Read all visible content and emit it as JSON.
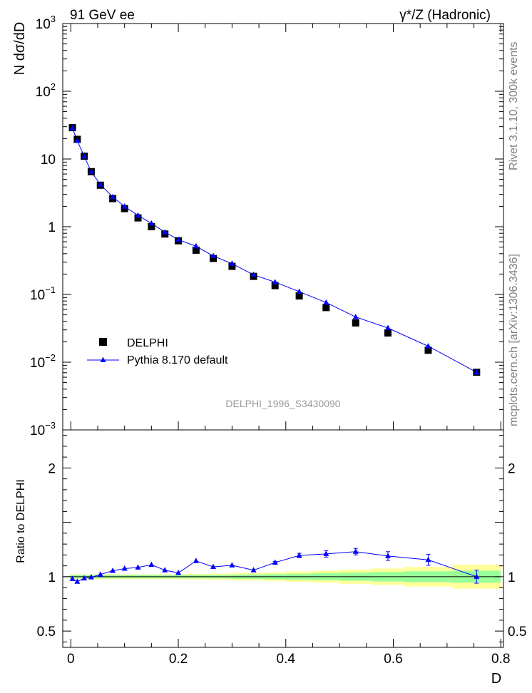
{
  "header": {
    "left": "91 GeV ee",
    "right": "γ*/Z (Hadronic)"
  },
  "side": {
    "rivet": "Rivet 3.1.10,  300k events",
    "mcplots": "mcplots.cern.ch [arXiv:1306.3436]"
  },
  "watermark": "DELPHI_1996_S3430090",
  "chart_data": [
    {
      "type": "scatter",
      "ylabel": "N dσ/dD",
      "yscale": "log",
      "ylim": [
        0.001,
        1000
      ],
      "xlim": [
        -0.015,
        0.805
      ],
      "yticks": [
        {
          "value": 1000,
          "base": "10",
          "exp": "3"
        },
        {
          "value": 100,
          "base": "10",
          "exp": "2"
        },
        {
          "value": 10,
          "base": "10",
          "exp": ""
        },
        {
          "value": 1,
          "base": "1",
          "exp": ""
        },
        {
          "value": 0.1,
          "base": "10",
          "exp": "−1"
        },
        {
          "value": 0.01,
          "base": "10",
          "exp": "−2"
        },
        {
          "value": 0.001,
          "base": "10",
          "exp": "−3"
        }
      ],
      "legend": {
        "position": "bottom-left",
        "entries": [
          "DELPHI",
          "Pythia 8.170 default"
        ]
      },
      "series": [
        {
          "name": "DELPHI",
          "x": [
            0.003,
            0.012,
            0.025,
            0.038,
            0.055,
            0.078,
            0.1,
            0.125,
            0.15,
            0.175,
            0.2,
            0.233,
            0.265,
            0.3,
            0.34,
            0.38,
            0.425,
            0.475,
            0.53,
            0.59,
            0.665,
            0.755
          ],
          "y": [
            29,
            19.5,
            11,
            6.5,
            4.1,
            2.6,
            1.85,
            1.35,
            1.0,
            0.78,
            0.62,
            0.45,
            0.34,
            0.26,
            0.185,
            0.135,
            0.095,
            0.064,
            0.038,
            0.027,
            0.015,
            0.0071
          ]
        },
        {
          "name": "Pythia 8.170 default",
          "x": [
            0.003,
            0.012,
            0.025,
            0.038,
            0.055,
            0.078,
            0.1,
            0.125,
            0.15,
            0.175,
            0.2,
            0.233,
            0.265,
            0.3,
            0.34,
            0.38,
            0.425,
            0.475,
            0.53,
            0.59,
            0.665,
            0.755
          ],
          "y": [
            28.5,
            18.6,
            10.9,
            6.5,
            4.2,
            2.75,
            1.99,
            1.47,
            1.12,
            0.83,
            0.645,
            0.515,
            0.37,
            0.285,
            0.195,
            0.152,
            0.11,
            0.076,
            0.0465,
            0.032,
            0.0172,
            0.0071
          ]
        }
      ]
    },
    {
      "type": "line",
      "ylabel": "Ratio to DELPHI",
      "xlabel": "D",
      "ylim": [
        0.35,
        2.35
      ],
      "xlim": [
        -0.015,
        0.805
      ],
      "yticks": [
        {
          "value": 2,
          "label": "2"
        },
        {
          "value": 1,
          "label": "1"
        },
        {
          "value": 0.5,
          "label": "0.5"
        }
      ],
      "xticks": [
        {
          "value": 0,
          "label": "0"
        },
        {
          "value": 0.2,
          "label": "0.2"
        },
        {
          "value": 0.4,
          "label": "0.4"
        },
        {
          "value": 0.6,
          "label": "0.6"
        },
        {
          "value": 0.8,
          "label": "0.8"
        }
      ],
      "bands": {
        "edges": [
          -0.002,
          0.06,
          0.1,
          0.15,
          0.2,
          0.25,
          0.3,
          0.36,
          0.4,
          0.45,
          0.5,
          0.56,
          0.62,
          0.71,
          0.8
        ],
        "stat_half": [
          0.015,
          0.015,
          0.015,
          0.015,
          0.015,
          0.016,
          0.02,
          0.024,
          0.028,
          0.032,
          0.038,
          0.044,
          0.05,
          0.055
        ],
        "total_half": [
          0.022,
          0.022,
          0.022,
          0.022,
          0.025,
          0.028,
          0.035,
          0.04,
          0.048,
          0.055,
          0.065,
          0.075,
          0.09,
          0.11
        ]
      },
      "series": [
        {
          "name": "Pythia 8.170 default",
          "x": [
            0.003,
            0.012,
            0.025,
            0.038,
            0.055,
            0.078,
            0.1,
            0.125,
            0.15,
            0.175,
            0.2,
            0.233,
            0.265,
            0.3,
            0.34,
            0.38,
            0.425,
            0.475,
            0.53,
            0.59,
            0.665,
            0.755
          ],
          "y": [
            0.98,
            0.955,
            0.985,
            0.995,
            1.02,
            1.055,
            1.075,
            1.085,
            1.11,
            1.06,
            1.035,
            1.145,
            1.09,
            1.105,
            1.06,
            1.13,
            1.195,
            1.21,
            1.23,
            1.19,
            1.155,
            1.0
          ],
          "yerr": [
            0,
            0,
            0,
            0,
            0,
            0,
            0,
            0,
            0,
            0,
            0,
            0,
            0,
            0,
            0,
            0.01,
            0.02,
            0.03,
            0.03,
            0.04,
            0.05,
            0.06
          ]
        }
      ]
    }
  ]
}
